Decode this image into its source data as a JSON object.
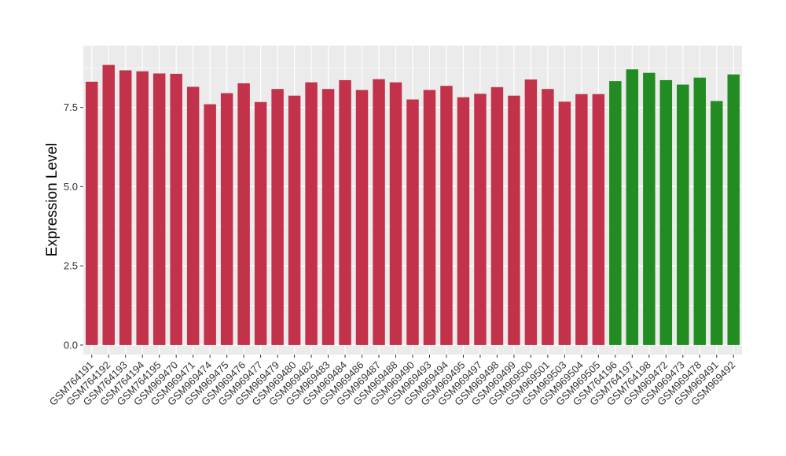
{
  "chart_data": {
    "type": "bar",
    "title": "",
    "xlabel": "",
    "ylabel": "Expression Level",
    "ylim": [
      -0.3,
      9.45
    ],
    "yticks": [
      0.0,
      2.5,
      5.0,
      7.5
    ],
    "ytick_labels": [
      "0.0",
      "2.5",
      "5.0",
      "7.5"
    ],
    "grid": true,
    "legend": "none",
    "categories": [
      "GSM764191",
      "GSM764192",
      "GSM764193",
      "GSM764194",
      "GSM764195",
      "GSM969470",
      "GSM969471",
      "GSM969474",
      "GSM969475",
      "GSM969476",
      "GSM969477",
      "GSM969479",
      "GSM969480",
      "GSM969482",
      "GSM969483",
      "GSM969484",
      "GSM969486",
      "GSM969487",
      "GSM969488",
      "GSM969490",
      "GSM969493",
      "GSM969494",
      "GSM969495",
      "GSM969497",
      "GSM969498",
      "GSM969499",
      "GSM969500",
      "GSM969501",
      "GSM969503",
      "GSM969504",
      "GSM969505",
      "GSM764196",
      "GSM764197",
      "GSM764198",
      "GSM969472",
      "GSM969473",
      "GSM969478",
      "GSM969491",
      "GSM969492"
    ],
    "values": [
      8.31,
      8.84,
      8.67,
      8.64,
      8.57,
      8.56,
      8.15,
      7.6,
      7.95,
      8.26,
      7.67,
      8.08,
      7.87,
      8.29,
      8.08,
      8.36,
      8.05,
      8.39,
      8.29,
      7.75,
      8.05,
      8.18,
      7.82,
      7.93,
      8.14,
      7.87,
      8.38,
      8.08,
      7.68,
      7.92,
      7.92,
      8.33,
      8.7,
      8.59,
      8.36,
      8.22,
      8.44,
      7.7,
      8.54
    ],
    "bar_groups": [
      0,
      0,
      0,
      0,
      0,
      0,
      0,
      0,
      0,
      0,
      0,
      0,
      0,
      0,
      0,
      0,
      0,
      0,
      0,
      0,
      0,
      0,
      0,
      0,
      0,
      0,
      0,
      0,
      0,
      0,
      0,
      1,
      1,
      1,
      1,
      1,
      1,
      1,
      1
    ],
    "colors": {
      "group_0": "#C2324A",
      "group_1": "#228B22",
      "panel_background": "#EBEBEB",
      "grid": "#FFFFFF"
    }
  }
}
